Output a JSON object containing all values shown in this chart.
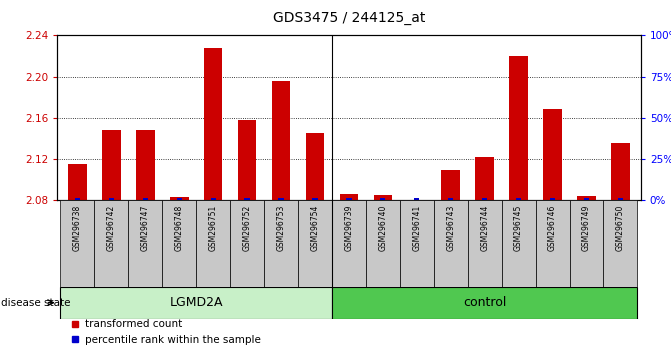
{
  "title": "GDS3475 / 244125_at",
  "samples": [
    "GSM296738",
    "GSM296742",
    "GSM296747",
    "GSM296748",
    "GSM296751",
    "GSM296752",
    "GSM296753",
    "GSM296754",
    "GSM296739",
    "GSM296740",
    "GSM296741",
    "GSM296743",
    "GSM296744",
    "GSM296745",
    "GSM296746",
    "GSM296749",
    "GSM296750"
  ],
  "red_values": [
    2.115,
    2.148,
    2.148,
    2.083,
    2.228,
    2.158,
    2.196,
    2.145,
    2.086,
    2.085,
    2.08,
    2.109,
    2.122,
    2.22,
    2.168,
    2.084,
    2.135
  ],
  "blue_values": [
    1.5,
    1.5,
    1.5,
    1.5,
    1.5,
    1.5,
    1.5,
    1.5,
    1.5,
    1.5,
    1.5,
    1.5,
    1.5,
    1.5,
    1.5,
    1.5,
    1.5
  ],
  "lgmd2a_count": 8,
  "bar_color_red": "#CC0000",
  "bar_color_blue": "#0000CC",
  "ylim_left": [
    2.08,
    2.24
  ],
  "ylim_right": [
    0,
    100
  ],
  "yticks_left": [
    2.08,
    2.12,
    2.16,
    2.2,
    2.24
  ],
  "yticks_right": [
    0,
    25,
    50,
    75,
    100
  ],
  "ytick_labels_right": [
    "0%",
    "25%",
    "50%",
    "75%",
    "100%"
  ],
  "color_lgmd2a": "#c8f0c8",
  "color_control": "#50c850",
  "color_sample_box": "#c8c8c8",
  "plot_bg": "#ffffff",
  "legend_red": "transformed count",
  "legend_blue": "percentile rank within the sample",
  "disease_state_label": "disease state"
}
